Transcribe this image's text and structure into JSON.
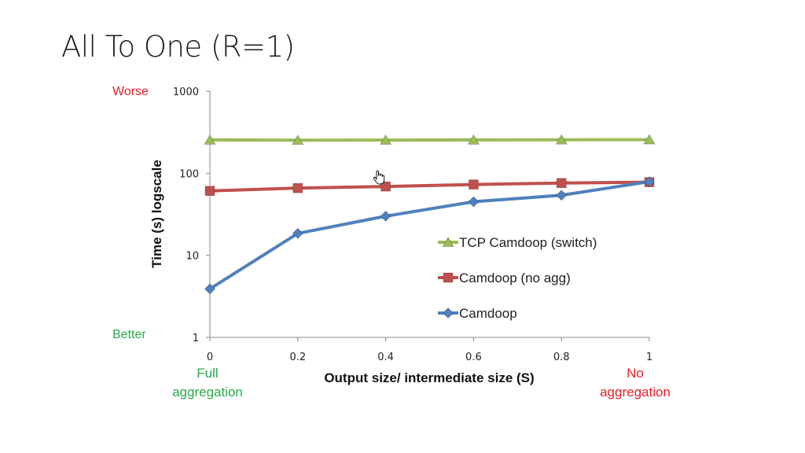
{
  "slide": {
    "title": "All To One (R=1)"
  },
  "annotations": {
    "worse": "Worse",
    "better": "Better",
    "left_note_line1": "Full",
    "left_note_line2": "aggregation",
    "right_note_line1": "No",
    "right_note_line2": "aggregation"
  },
  "chart_data": {
    "type": "line",
    "xlabel": "Output size/ intermediate size (S)",
    "ylabel": "Time (s) logscale",
    "x": [
      0,
      0.2,
      0.4,
      0.6,
      0.8,
      1
    ],
    "x_tick_labels": [
      "0",
      "0.2",
      "0.4",
      "0.6",
      "0.8",
      "1"
    ],
    "y_tick_labels": [
      "1",
      "10",
      "100",
      "1000"
    ],
    "xlim": [
      0,
      1
    ],
    "ylim": [
      1,
      1000
    ],
    "y_scale": "log",
    "grid": false,
    "legend_position": "inside-right",
    "series": [
      {
        "name": "TCP Camdoop (switch)",
        "values": [
          255,
          253,
          254,
          255,
          256,
          257
        ],
        "color": "#9bbb59",
        "marker": "triangle"
      },
      {
        "name": "Camdoop (no agg)",
        "values": [
          61,
          66,
          69,
          73,
          76,
          78
        ],
        "color": "#c0504d",
        "marker": "square"
      },
      {
        "name": "Camdoop",
        "values": [
          3.9,
          18.5,
          30,
          45,
          54,
          79
        ],
        "color": "#4f81bd",
        "marker": "diamond"
      }
    ]
  }
}
